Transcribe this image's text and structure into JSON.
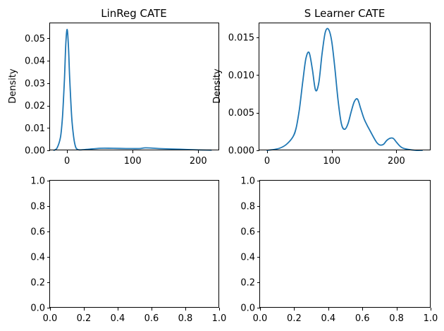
{
  "colors": {
    "series": "#1f77b4",
    "background": "#ffffff",
    "axis": "#000000"
  },
  "chart_data": [
    {
      "type": "line",
      "subtype": "kde",
      "title": "LinReg CATE",
      "xlabel": "",
      "ylabel": "Density",
      "xlim": [
        -26,
        232
      ],
      "ylim": [
        0,
        0.0567
      ],
      "xticks": [
        0,
        100,
        200
      ],
      "xtick_labels": [
        "0",
        "100",
        "200"
      ],
      "yticks": [
        0,
        0.01,
        0.02,
        0.03,
        0.04,
        0.05
      ],
      "ytick_labels": [
        "0.00",
        "0.01",
        "0.02",
        "0.03",
        "0.04",
        "0.05"
      ],
      "grid": false,
      "series": [
        {
          "x": [
            -20,
            -15,
            -10,
            -7,
            -4,
            -2,
            0,
            2,
            4,
            7,
            10,
            13,
            16,
            20,
            30,
            50,
            70,
            90,
            110,
            120,
            140,
            170,
            200,
            220
          ],
          "y": [
            0.0,
            0.0012,
            0.006,
            0.015,
            0.032,
            0.047,
            0.054,
            0.047,
            0.032,
            0.015,
            0.006,
            0.0015,
            0.0004,
            0.0002,
            0.0004,
            0.0009,
            0.0009,
            0.0008,
            0.0008,
            0.0011,
            0.0008,
            0.0005,
            0.0002,
            0.0001
          ]
        }
      ]
    },
    {
      "type": "line",
      "subtype": "kde",
      "title": "S Learner CATE",
      "xlabel": "",
      "ylabel": "Density",
      "xlim": [
        -12,
        253
      ],
      "ylim": [
        0,
        0.0169
      ],
      "xticks": [
        0,
        100,
        200
      ],
      "xtick_labels": [
        "0",
        "100",
        "200"
      ],
      "yticks": [
        0,
        0.005,
        0.01,
        0.015
      ],
      "ytick_labels": [
        "0.000",
        "0.005",
        "0.010",
        "0.015"
      ],
      "grid": false,
      "series": [
        {
          "x": [
            0,
            10,
            20,
            30,
            40,
            45,
            50,
            55,
            60,
            65,
            70,
            75,
            80,
            85,
            90,
            95,
            100,
            105,
            110,
            115,
            120,
            125,
            130,
            135,
            140,
            145,
            150,
            155,
            160,
            165,
            170,
            175,
            180,
            185,
            190,
            195,
            200,
            205,
            210,
            220,
            230,
            240
          ],
          "y": [
            0.0,
            0.0001,
            0.0003,
            0.0008,
            0.0018,
            0.003,
            0.0055,
            0.009,
            0.0122,
            0.013,
            0.0108,
            0.008,
            0.009,
            0.0128,
            0.0157,
            0.0161,
            0.0145,
            0.0108,
            0.0065,
            0.0035,
            0.0028,
            0.0035,
            0.0051,
            0.0065,
            0.0068,
            0.0055,
            0.0042,
            0.0033,
            0.0025,
            0.0017,
            0.001,
            0.0007,
            0.0008,
            0.0013,
            0.0016,
            0.0016,
            0.0011,
            0.0006,
            0.0003,
            0.0001,
            0.0,
            0.0
          ]
        }
      ]
    },
    {
      "type": "line",
      "title": "",
      "xlabel": "",
      "ylabel": "",
      "xlim": [
        0,
        1
      ],
      "ylim": [
        0,
        1
      ],
      "xticks": [
        0,
        0.2,
        0.4,
        0.6,
        0.8,
        1.0
      ],
      "xtick_labels": [
        "0.0",
        "0.2",
        "0.4",
        "0.6",
        "0.8",
        "1.0"
      ],
      "yticks": [
        0,
        0.2,
        0.4,
        0.6,
        0.8,
        1.0
      ],
      "ytick_labels": [
        "0.0",
        "0.2",
        "0.4",
        "0.6",
        "0.8",
        "1.0"
      ],
      "grid": false,
      "series": []
    },
    {
      "type": "line",
      "title": "",
      "xlabel": "",
      "ylabel": "",
      "xlim": [
        0,
        1
      ],
      "ylim": [
        0,
        1
      ],
      "xticks": [
        0,
        0.2,
        0.4,
        0.6,
        0.8,
        1.0
      ],
      "xtick_labels": [
        "0.0",
        "0.2",
        "0.4",
        "0.6",
        "0.8",
        "1.0"
      ],
      "yticks": [
        0,
        0.2,
        0.4,
        0.6,
        0.8,
        1.0
      ],
      "ytick_labels": [
        "0.0",
        "0.2",
        "0.4",
        "0.6",
        "0.8",
        "1.0"
      ],
      "grid": false,
      "series": []
    }
  ]
}
